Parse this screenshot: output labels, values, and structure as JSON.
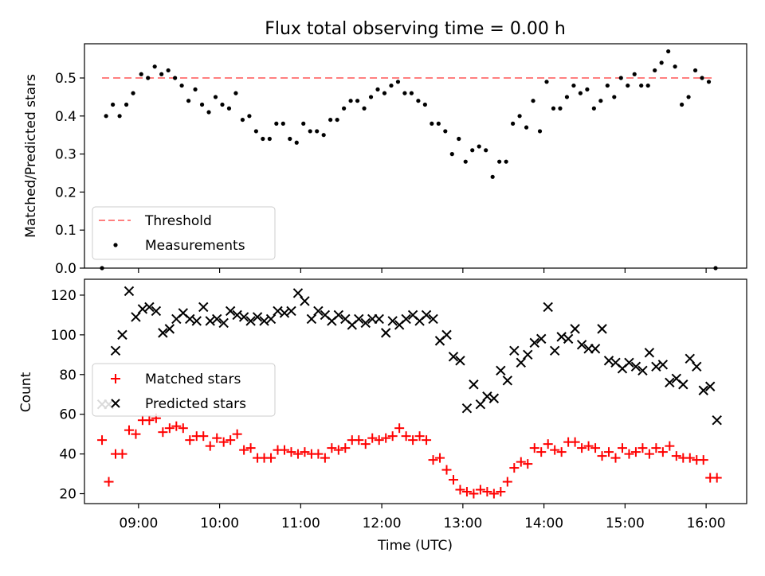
{
  "chart_data": [
    {
      "type": "scatter",
      "title": "Flux total observing time = 0.00 h",
      "xlabel": "",
      "ylabel": "Matched/Predicted stars",
      "xlim": [
        "08:20",
        "16:30"
      ],
      "ylim": [
        0,
        0.59
      ],
      "yticks": [
        0.0,
        0.1,
        0.2,
        0.3,
        0.4,
        0.5
      ],
      "xticks": [
        "09:00",
        "10:00",
        "11:00",
        "12:00",
        "13:00",
        "14:00",
        "15:00",
        "16:00"
      ],
      "legend": {
        "placement": "lower-left",
        "entries": [
          "Threshold",
          "Measurements"
        ]
      },
      "threshold": {
        "name": "Threshold",
        "value": 0.5,
        "x_range": [
          "08:33",
          "16:07"
        ],
        "color": "#ff7f7f"
      },
      "series": [
        {
          "name": "Measurements",
          "color": "#000000",
          "x": [
            "08:33",
            "08:36",
            "08:41",
            "08:46",
            "08:51",
            "08:56",
            "09:02",
            "09:07",
            "09:12",
            "09:17",
            "09:22",
            "09:27",
            "09:32",
            "09:37",
            "09:42",
            "09:47",
            "09:52",
            "09:57",
            "10:02",
            "10:07",
            "10:12",
            "10:17",
            "10:22",
            "10:27",
            "10:32",
            "10:37",
            "10:42",
            "10:47",
            "10:52",
            "10:57",
            "11:02",
            "11:07",
            "11:12",
            "11:17",
            "11:22",
            "11:27",
            "11:32",
            "11:37",
            "11:42",
            "11:47",
            "11:52",
            "11:57",
            "12:02",
            "12:07",
            "12:12",
            "12:17",
            "12:22",
            "12:27",
            "12:32",
            "12:37",
            "12:42",
            "12:47",
            "12:52",
            "12:57",
            "13:02",
            "13:07",
            "13:12",
            "13:17",
            "13:22",
            "13:27",
            "13:32",
            "13:37",
            "13:42",
            "13:47",
            "13:52",
            "13:57",
            "14:02",
            "14:07",
            "14:12",
            "14:17",
            "14:22",
            "14:27",
            "14:32",
            "14:37",
            "14:42",
            "14:47",
            "14:52",
            "14:57",
            "15:02",
            "15:07",
            "15:12",
            "15:17",
            "15:22",
            "15:27",
            "15:32",
            "15:37",
            "15:42",
            "15:47",
            "15:52",
            "15:57",
            "16:02",
            "16:07"
          ],
          "y": [
            0.0,
            0.4,
            0.43,
            0.4,
            0.43,
            0.46,
            0.51,
            0.5,
            0.53,
            0.51,
            0.52,
            0.5,
            0.48,
            0.44,
            0.47,
            0.43,
            0.41,
            0.45,
            0.43,
            0.42,
            0.46,
            0.39,
            0.4,
            0.36,
            0.34,
            0.34,
            0.38,
            0.38,
            0.34,
            0.33,
            0.38,
            0.36,
            0.36,
            0.35,
            0.39,
            0.39,
            0.42,
            0.44,
            0.44,
            0.42,
            0.45,
            0.47,
            0.46,
            0.48,
            0.49,
            0.46,
            0.46,
            0.44,
            0.43,
            0.38,
            0.38,
            0.36,
            0.3,
            0.34,
            0.28,
            0.31,
            0.32,
            0.31,
            0.24,
            0.28,
            0.28,
            0.38,
            0.4,
            0.37,
            0.44,
            0.36,
            0.49,
            0.42,
            0.42,
            0.45,
            0.48,
            0.46,
            0.47,
            0.42,
            0.44,
            0.48,
            0.45,
            0.5,
            0.48,
            0.51,
            0.48,
            0.48,
            0.52,
            0.54,
            0.57,
            0.53,
            0.43,
            0.45,
            0.52,
            0.5,
            0.49,
            0.0
          ]
        }
      ]
    },
    {
      "type": "scatter",
      "title": "",
      "xlabel": "Time (UTC)",
      "ylabel": "Count",
      "xlim": [
        "08:20",
        "16:30"
      ],
      "ylim": [
        15,
        128
      ],
      "yticks": [
        20,
        40,
        60,
        80,
        100,
        120
      ],
      "xticks": [
        "09:00",
        "10:00",
        "11:00",
        "12:00",
        "13:00",
        "14:00",
        "15:00",
        "16:00"
      ],
      "legend": {
        "placement": "center-left",
        "entries": [
          "Matched stars",
          "Predicted stars"
        ]
      },
      "series": [
        {
          "name": "Matched stars",
          "color": "#ff0000",
          "marker": "plus",
          "x": [
            "08:33",
            "08:38",
            "08:43",
            "08:48",
            "08:53",
            "08:58",
            "09:03",
            "09:08",
            "09:13",
            "09:18",
            "09:23",
            "09:28",
            "09:33",
            "09:38",
            "09:43",
            "09:48",
            "09:53",
            "09:58",
            "10:03",
            "10:08",
            "10:13",
            "10:18",
            "10:23",
            "10:28",
            "10:33",
            "10:38",
            "10:43",
            "10:48",
            "10:53",
            "10:58",
            "11:03",
            "11:08",
            "11:13",
            "11:18",
            "11:23",
            "11:28",
            "11:33",
            "11:38",
            "11:43",
            "11:48",
            "11:53",
            "11:58",
            "12:03",
            "12:08",
            "12:13",
            "12:18",
            "12:23",
            "12:28",
            "12:33",
            "12:38",
            "12:43",
            "12:48",
            "12:53",
            "12:58",
            "13:03",
            "13:08",
            "13:13",
            "13:18",
            "13:23",
            "13:28",
            "13:33",
            "13:38",
            "13:43",
            "13:48",
            "13:53",
            "13:58",
            "14:03",
            "14:08",
            "14:13",
            "14:18",
            "14:23",
            "14:28",
            "14:33",
            "14:38",
            "14:43",
            "14:48",
            "14:53",
            "14:58",
            "15:03",
            "15:08",
            "15:13",
            "15:18",
            "15:23",
            "15:28",
            "15:33",
            "15:38",
            "15:43",
            "15:48",
            "15:53",
            "15:58",
            "16:03",
            "16:08"
          ],
          "y": [
            47,
            26,
            40,
            40,
            52,
            50,
            57,
            57,
            58,
            51,
            53,
            54,
            53,
            47,
            49,
            49,
            44,
            48,
            46,
            47,
            50,
            42,
            43,
            38,
            38,
            38,
            42,
            42,
            41,
            40,
            41,
            40,
            40,
            38,
            43,
            42,
            43,
            47,
            47,
            45,
            48,
            47,
            48,
            49,
            53,
            49,
            47,
            49,
            47,
            37,
            38,
            32,
            27,
            22,
            21,
            20,
            22,
            21,
            20,
            21,
            26,
            33,
            36,
            35,
            43,
            41,
            45,
            42,
            41,
            46,
            46,
            43,
            44,
            43,
            39,
            41,
            38,
            43,
            40,
            41,
            43,
            40,
            43,
            41,
            44,
            39,
            38,
            38,
            37,
            37,
            28,
            28
          ]
        },
        {
          "name": "Predicted stars",
          "color": "#000000",
          "marker": "x",
          "x": [
            "08:33",
            "08:38",
            "08:43",
            "08:48",
            "08:53",
            "08:58",
            "09:03",
            "09:08",
            "09:13",
            "09:18",
            "09:23",
            "09:28",
            "09:33",
            "09:38",
            "09:43",
            "09:48",
            "09:53",
            "09:58",
            "10:03",
            "10:08",
            "10:13",
            "10:18",
            "10:23",
            "10:28",
            "10:33",
            "10:38",
            "10:43",
            "10:48",
            "10:53",
            "10:58",
            "11:03",
            "11:08",
            "11:13",
            "11:18",
            "11:23",
            "11:28",
            "11:33",
            "11:38",
            "11:43",
            "11:48",
            "11:53",
            "11:58",
            "12:03",
            "12:08",
            "12:13",
            "12:18",
            "12:23",
            "12:28",
            "12:33",
            "12:38",
            "12:43",
            "12:48",
            "12:53",
            "12:58",
            "13:03",
            "13:08",
            "13:13",
            "13:18",
            "13:23",
            "13:28",
            "13:33",
            "13:38",
            "13:43",
            "13:48",
            "13:53",
            "13:58",
            "14:03",
            "14:08",
            "14:13",
            "14:18",
            "14:23",
            "14:28",
            "14:33",
            "14:38",
            "14:43",
            "14:48",
            "14:53",
            "14:58",
            "15:03",
            "15:08",
            "15:13",
            "15:18",
            "15:23",
            "15:28",
            "15:33",
            "15:38",
            "15:43",
            "15:48",
            "15:53",
            "15:58",
            "16:03",
            "16:08"
          ],
          "y": [
            65,
            65,
            92,
            100,
            122,
            109,
            113,
            114,
            112,
            101,
            103,
            108,
            111,
            108,
            107,
            114,
            107,
            108,
            106,
            112,
            110,
            109,
            107,
            109,
            107,
            108,
            112,
            111,
            112,
            121,
            117,
            108,
            112,
            110,
            107,
            110,
            108,
            105,
            108,
            106,
            108,
            108,
            101,
            107,
            105,
            108,
            110,
            107,
            110,
            108,
            97,
            100,
            89,
            87,
            63,
            75,
            65,
            69,
            68,
            82,
            77,
            92,
            86,
            90,
            96,
            98,
            114,
            92,
            99,
            98,
            103,
            95,
            93,
            93,
            103,
            87,
            86,
            83,
            86,
            84,
            82,
            91,
            84,
            85,
            76,
            78,
            75,
            88,
            84,
            72,
            74,
            57
          ]
        }
      ]
    }
  ]
}
